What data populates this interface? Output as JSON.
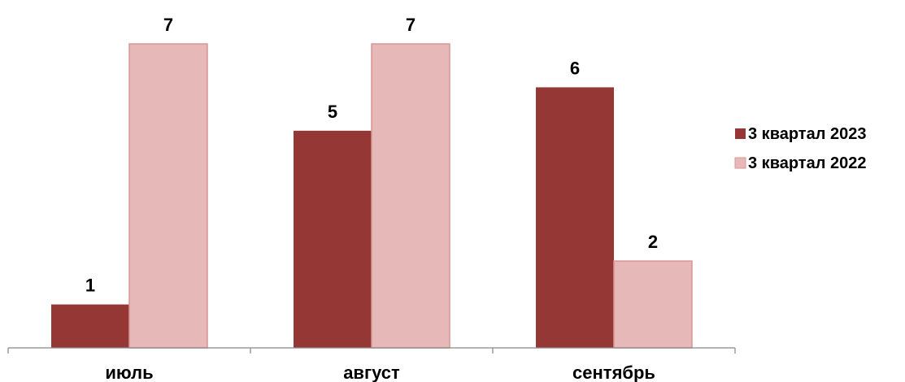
{
  "chart_data": {
    "type": "bar",
    "title": "",
    "xlabel": "",
    "ylabel": "",
    "categories": [
      "июль",
      "август",
      "сентябрь"
    ],
    "series": [
      {
        "name": "3 квартал 2023",
        "values": [
          1,
          5,
          6
        ],
        "color": "#953735"
      },
      {
        "name": "3 квартал 2022",
        "values": [
          7,
          7,
          2
        ],
        "color": "#E6B9B8",
        "stroke": "#D99694"
      }
    ],
    "ylim": [
      0,
      7
    ],
    "grid": false,
    "legend": "right",
    "data_labels": true
  }
}
